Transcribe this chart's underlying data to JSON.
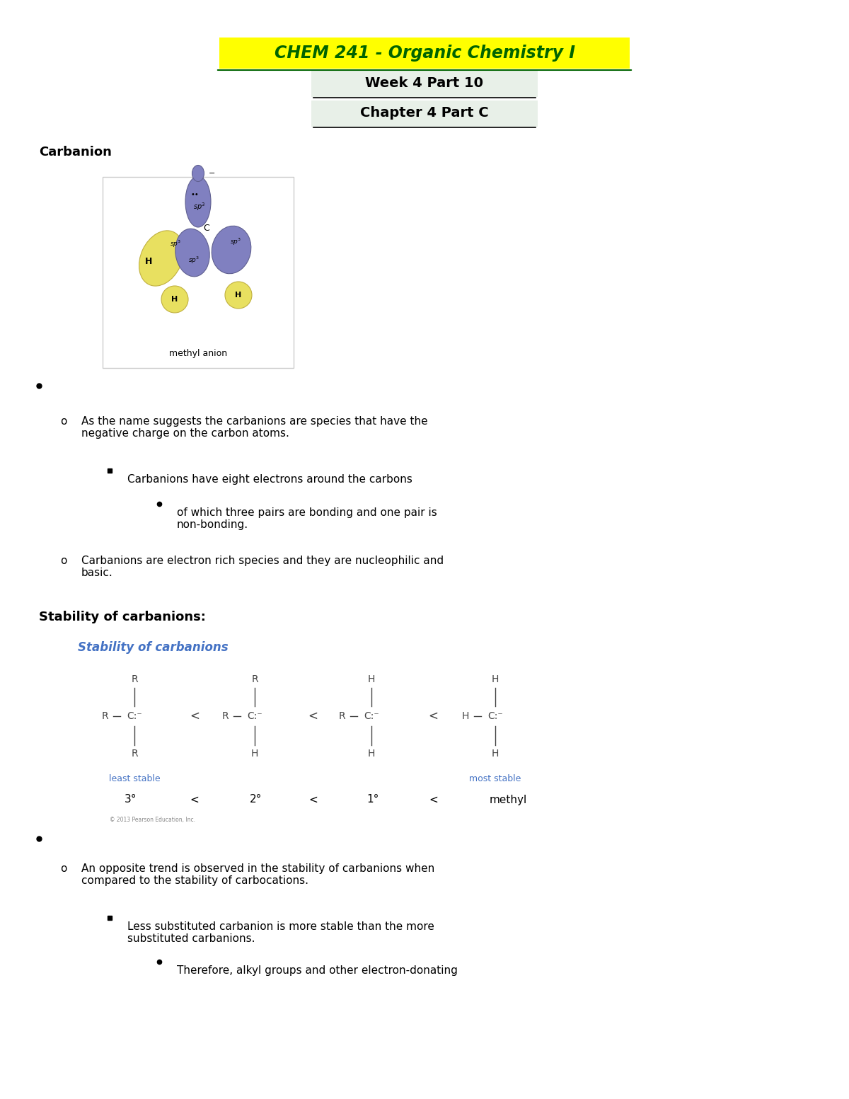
{
  "bg_color": "#ffffff",
  "title1": "CHEM 241 - Organic Chemistry I",
  "title1_color": "#006400",
  "title1_bg": "#ffff00",
  "title2": "Week 4 Part 10",
  "title3": "Chapter 4 Part C",
  "title23_bg": "#e8f0e8",
  "section1": "Carbanion",
  "bullet_l2_1": "As the name suggests the carbanions are species that have the\nnegative charge on the carbon atoms.",
  "bullet_l3_1": "Carbanions have eight electrons around the carbons",
  "bullet_l4_1": "of which three pairs are bonding and one pair is\nnon-bonding.",
  "bullet_l2_2": "Carbanions are electron rich species and they are nucleophilic and\nbasic.",
  "section2": "Stability of carbanions:",
  "stability_italic": "Stability of carbanions",
  "stability_italic_color": "#4472c4",
  "least_stable": "least stable",
  "most_stable": "most stable",
  "stab_color": "#4472c4",
  "bullet_b1": "An opposite trend is observed in the stability of carbanions when\ncompared to the stability of carbocations.",
  "bullet_b2": "Less substituted carbanion is more stable than the more\nsubstituted carbanions.",
  "bullet_b3": "Therefore, alkyl groups and other electron-donating",
  "copyright": "© 2013 Pearson Education, Inc."
}
